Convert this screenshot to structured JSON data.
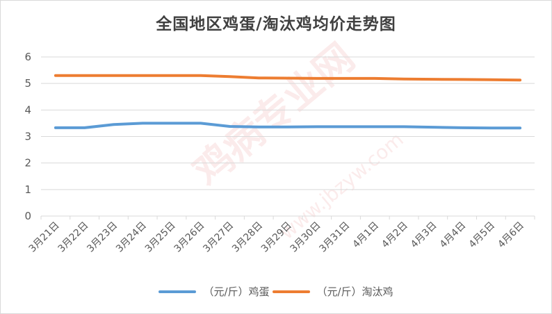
{
  "colors": {
    "series1": "#5b9bd5",
    "series2": "#ed7d31",
    "grid": "#d9d9d9",
    "axis_text": "#595959",
    "watermark": "#dc3c3c"
  },
  "watermark": {
    "main": "鸡病专业网",
    "url": "www.jbzyw.com"
  },
  "chart_data": {
    "type": "line",
    "title": "全国地区鸡蛋/淘汰鸡均价走势图",
    "xlabel": "",
    "ylabel": "",
    "ylim": [
      0,
      6
    ],
    "yticks": [
      "0",
      "1",
      "2",
      "3",
      "4",
      "5",
      "6"
    ],
    "grid": true,
    "legend_position": "bottom",
    "categories": [
      "3月21日",
      "3月22日",
      "3月23日",
      "3月24日",
      "3月25日",
      "3月26日",
      "3月27日",
      "3月28日",
      "3月29日",
      "3月30日",
      "3月31日",
      "4月1日",
      "4月2日",
      "4月3日",
      "4月4日",
      "4月5日",
      "4月6日"
    ],
    "series": [
      {
        "name": "（元/斤）鸡蛋",
        "values": [
          3.33,
          3.33,
          3.45,
          3.5,
          3.5,
          3.5,
          3.38,
          3.36,
          3.36,
          3.37,
          3.37,
          3.37,
          3.37,
          3.35,
          3.33,
          3.32,
          3.32
        ]
      },
      {
        "name": "（元/斤）淘汰鸡",
        "values": [
          5.3,
          5.3,
          5.3,
          5.3,
          5.3,
          5.3,
          5.26,
          5.21,
          5.2,
          5.19,
          5.19,
          5.19,
          5.17,
          5.16,
          5.15,
          5.14,
          5.13
        ]
      }
    ]
  }
}
